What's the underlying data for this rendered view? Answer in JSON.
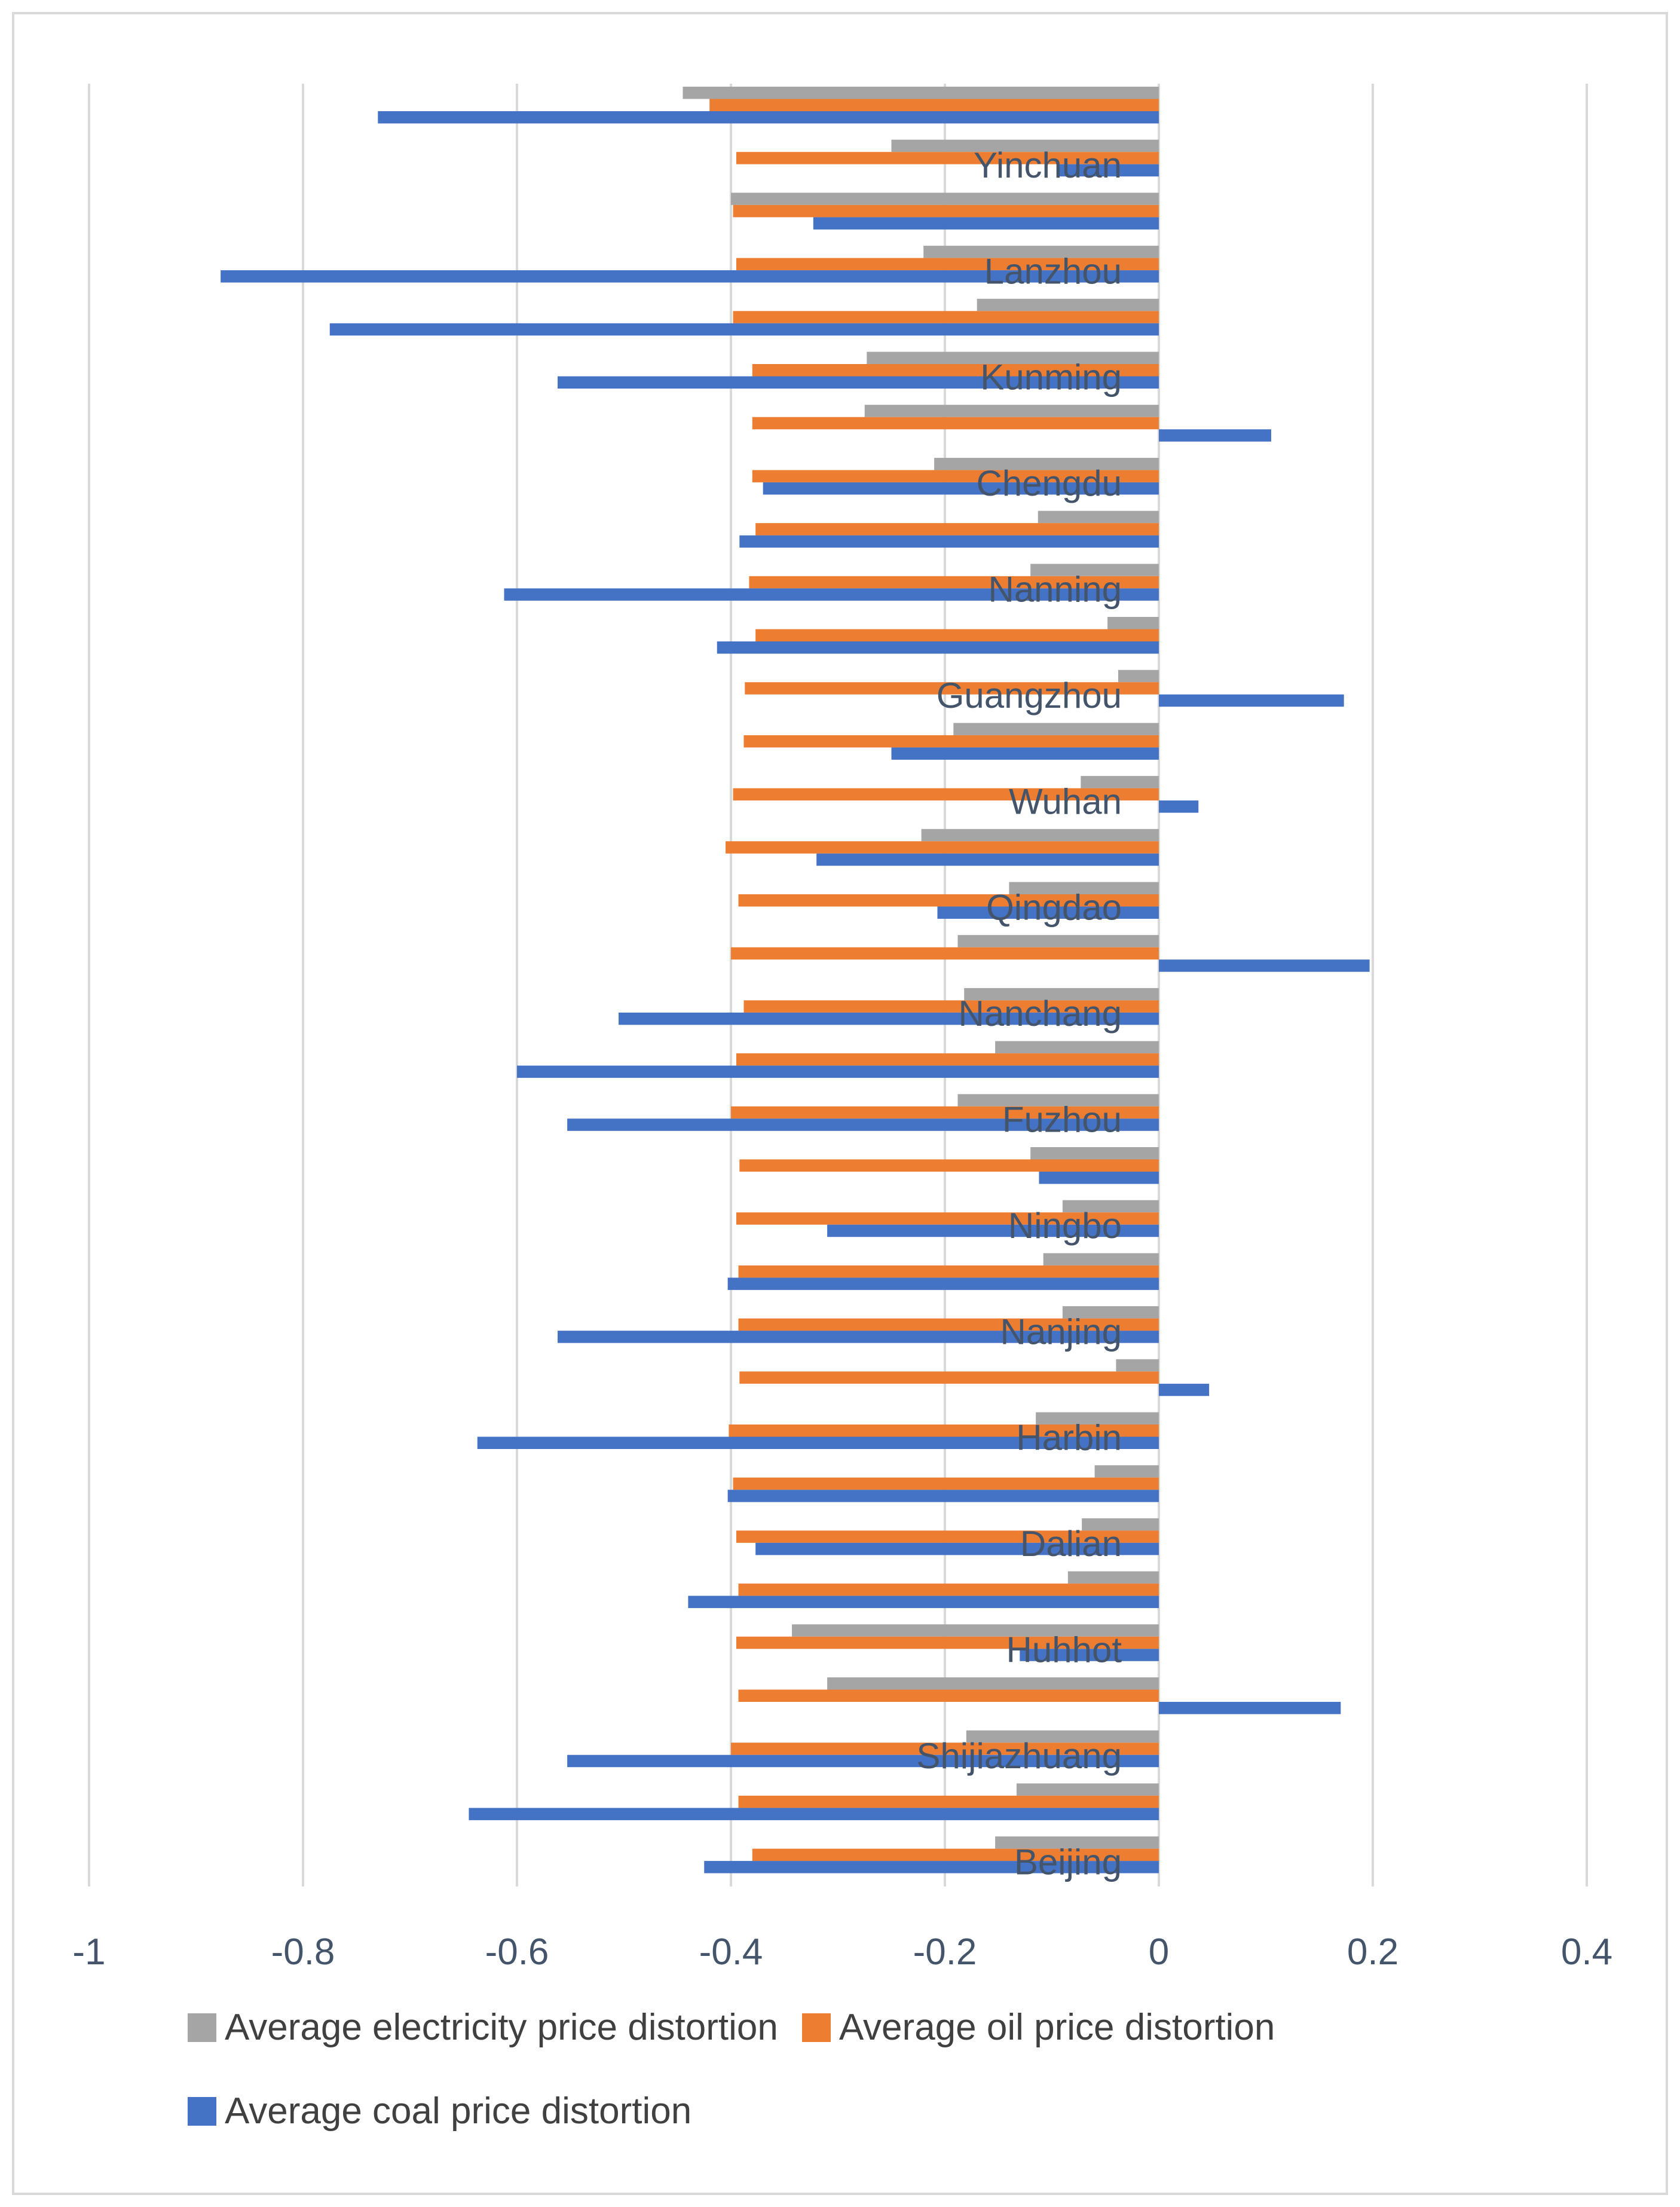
{
  "chart_data": {
    "type": "bar",
    "orientation": "horizontal",
    "title": "",
    "xlabel": "",
    "ylabel": "",
    "xlim": [
      -1,
      0.4
    ],
    "xticks": [
      -1,
      -0.8,
      -0.6,
      -0.4,
      -0.2,
      0,
      0.2,
      0.4
    ],
    "xtick_labels": [
      "-1",
      "-0.8",
      "-0.6",
      "-0.4",
      "-0.2",
      "0",
      "0.2",
      "0.4"
    ],
    "grid": "vertical",
    "category_labels_shown": [
      "Yinchuan",
      "Lanzhou",
      "Kunming",
      "Chengdu",
      "Nanning",
      "Guangzhou",
      "Wuhan",
      "Qingdao",
      "Nanchang",
      "Fuzhou",
      "Ningbo",
      "Nanjing",
      "Harbin",
      "Dalian",
      "Huhhot",
      "Shijiazhuang",
      "Beijing"
    ],
    "label_rows": [
      1,
      3,
      5,
      7,
      9,
      11,
      13,
      15,
      17,
      19,
      21,
      23,
      25,
      27,
      29,
      31,
      33
    ],
    "n_rows": 34,
    "series": [
      {
        "name": "Average electricity price distortion",
        "color": "#a5a5a5",
        "values": [
          -0.445,
          -0.25,
          -0.4,
          -0.22,
          -0.17,
          -0.273,
          -0.275,
          -0.21,
          -0.113,
          -0.12,
          -0.048,
          -0.038,
          -0.192,
          -0.073,
          -0.222,
          -0.14,
          -0.188,
          -0.182,
          -0.153,
          -0.188,
          -0.12,
          -0.09,
          -0.108,
          -0.09,
          -0.04,
          -0.115,
          -0.06,
          -0.072,
          -0.085,
          -0.343,
          -0.31,
          -0.18,
          -0.133,
          -0.153
        ]
      },
      {
        "name": "Average oil price distortion",
        "color": "#ed7d31",
        "values": [
          -0.42,
          -0.395,
          -0.398,
          -0.395,
          -0.398,
          -0.38,
          -0.38,
          -0.38,
          -0.377,
          -0.383,
          -0.377,
          -0.387,
          -0.388,
          -0.398,
          -0.405,
          -0.393,
          -0.4,
          -0.388,
          -0.395,
          -0.4,
          -0.392,
          -0.395,
          -0.393,
          -0.393,
          -0.392,
          -0.402,
          -0.398,
          -0.395,
          -0.393,
          -0.395,
          -0.393,
          -0.4,
          -0.393,
          -0.38
        ]
      },
      {
        "name": "Average coal price distortion",
        "color": "#4472c4",
        "values": [
          -0.73,
          -0.093,
          -0.323,
          -0.877,
          -0.775,
          -0.562,
          0.105,
          -0.37,
          -0.392,
          -0.612,
          -0.413,
          0.173,
          -0.25,
          0.037,
          -0.32,
          -0.207,
          0.197,
          -0.505,
          -0.6,
          -0.553,
          -0.112,
          -0.31,
          -0.403,
          -0.562,
          0.047,
          -0.637,
          -0.403,
          -0.377,
          -0.44,
          -0.13,
          0.17,
          -0.553,
          -0.645,
          -0.425
        ]
      }
    ],
    "legend": {
      "placement": "bottom",
      "row1": [
        "Average electricity price distortion",
        "Average oil price distortion"
      ],
      "row2": [
        "Average coal price distortion"
      ]
    }
  }
}
